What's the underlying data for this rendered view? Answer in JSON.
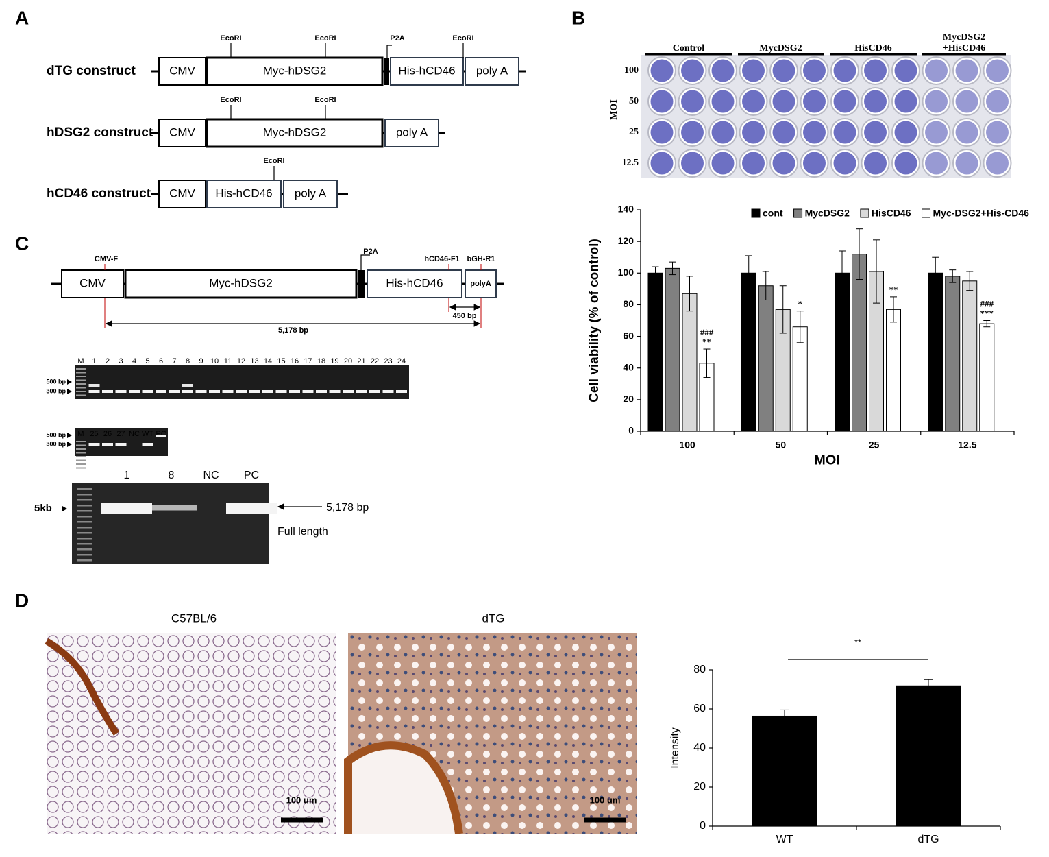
{
  "panel_labels": [
    "A",
    "B",
    "C",
    "D"
  ],
  "constructs": [
    {
      "name": "dTG construct",
      "parts": [
        "CMV",
        "Myc-hDSG2",
        "His-hCD46",
        "poly A"
      ],
      "sites": [
        "EcoRI",
        "EcoRI",
        "P2A",
        "EcoRI"
      ]
    },
    {
      "name": "hDSG2 construct",
      "parts": [
        "CMV",
        "Myc-hDSG2",
        "poly A"
      ],
      "sites": [
        "EcoRI",
        "EcoRI"
      ]
    },
    {
      "name": "hCD46 construct",
      "parts": [
        "CMV",
        "His-hCD46",
        "poly A"
      ],
      "sites": [
        "EcoRI"
      ]
    }
  ],
  "plate": {
    "columns": [
      [
        "Control"
      ],
      [
        "MycDSG2"
      ],
      [
        "HisCD46"
      ],
      [
        "MycDSG2",
        "+HisCD46"
      ]
    ],
    "rows": [
      "100",
      "50",
      "25",
      "12.5"
    ],
    "row_axis": "MOI"
  },
  "diagram_c": {
    "parts": [
      "CMV",
      "Myc-hDSG2",
      "His-hCD46",
      "polyA"
    ],
    "p2a": "P2A",
    "primers": [
      "CMV-F",
      "hCD46-F1",
      "bGH-R1"
    ],
    "short_product": "450 bp",
    "long_product": "5,178 bp"
  },
  "highlight_color": "#c00000",
  "gels": [
    {
      "lanes": [
        "M",
        "1",
        "2",
        "3",
        "4",
        "5",
        "6",
        "7",
        "8",
        "9",
        "10",
        "11",
        "12",
        "13",
        "14",
        "15",
        "16",
        "17",
        "18",
        "19",
        "20",
        "21",
        "22",
        "23",
        "24"
      ],
      "highlighted": [
        1,
        8
      ],
      "markers": [
        "500 bp",
        "300 bp"
      ]
    },
    {
      "lanes": [
        "M",
        "25",
        "26",
        "27",
        "NC",
        "WT",
        "PC"
      ],
      "highlighted": [],
      "markers": [
        "500 bp",
        "300 bp"
      ]
    },
    {
      "lanes": [
        "1",
        "8",
        "NC",
        "PC"
      ],
      "highlighted": [
        0,
        1
      ],
      "markers": [
        "5kb"
      ],
      "product": "5,178 bp",
      "note": "Full length"
    }
  ],
  "micrographs": [
    {
      "title": "C57BL/6",
      "scale": "100 um"
    },
    {
      "title": "dTG",
      "scale": "100 um"
    }
  ],
  "chart_data": [
    {
      "type": "bar",
      "ylabel": "Cell viability (% of control)",
      "xlabel": "MOI",
      "categories": [
        "100",
        "50",
        "25",
        "12.5"
      ],
      "series": [
        {
          "name": "cont",
          "color": "#000000",
          "values": [
            100,
            100,
            100,
            100
          ],
          "errors": [
            4,
            11,
            14,
            10
          ]
        },
        {
          "name": "MycDSG2",
          "color": "#808080",
          "values": [
            103,
            92,
            112,
            98
          ],
          "errors": [
            4,
            9,
            16,
            4
          ]
        },
        {
          "name": "HisCD46",
          "color": "#d9d9d9",
          "values": [
            87,
            77,
            101,
            95
          ],
          "errors": [
            11,
            15,
            20,
            6
          ]
        },
        {
          "name": "Myc-DSG2+His-CD46",
          "color": "#ffffff",
          "values": [
            43,
            66,
            77,
            68
          ],
          "errors": [
            9,
            10,
            8,
            2
          ],
          "annotations": [
            [
              "###",
              "**"
            ],
            [
              "*"
            ],
            [
              "**"
            ],
            [
              "###",
              "***"
            ]
          ]
        }
      ],
      "ylim": [
        0,
        140
      ],
      "yticks": [
        0,
        20,
        40,
        60,
        80,
        100,
        120,
        140
      ]
    },
    {
      "type": "bar",
      "ylabel": "Intensity",
      "categories": [
        "WT",
        "dTG"
      ],
      "values": [
        56.5,
        72
      ],
      "errors": [
        3,
        3
      ],
      "color": "#000000",
      "significance": "**",
      "ylim": [
        0,
        80
      ],
      "yticks": [
        0,
        20,
        40,
        60,
        80
      ]
    }
  ]
}
